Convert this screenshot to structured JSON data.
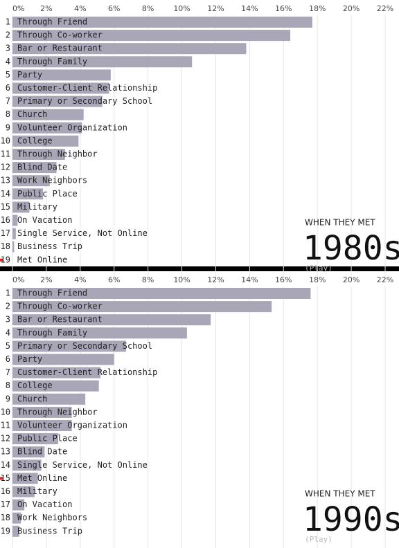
{
  "chart_data": [
    {
      "type": "bar",
      "orientation": "horizontal",
      "annotations": [
        "WHEN THEY MET",
        "1980s",
        "(Play)"
      ],
      "ranks": [
        1,
        2,
        3,
        4,
        5,
        6,
        7,
        8,
        9,
        10,
        11,
        12,
        13,
        14,
        15,
        16,
        17,
        18,
        19
      ],
      "categories": [
        "Through Friend",
        "Through Co-worker",
        "Bar or Restaurant",
        "Through Family",
        "Party",
        "Customer-Client Relationship",
        "Primary or Secondary School",
        "Church",
        "Volunteer Organization",
        "College",
        "Through Neighbor",
        "Blind Date",
        "Work Neighbors",
        "Public Place",
        "Military",
        "On Vacation",
        "Single Service, Not Online",
        "Business Trip",
        "Met Online"
      ],
      "values": [
        17.7,
        16.4,
        13.8,
        10.6,
        5.8,
        5.7,
        5.3,
        4.2,
        4.1,
        3.9,
        3.1,
        2.6,
        2.2,
        1.8,
        1.0,
        0.3,
        0.2,
        0.1,
        0
      ],
      "color": "#a9a6b8",
      "highlight": "Met Online",
      "highlight_color": "#d62728",
      "xlim": [
        0,
        22
      ],
      "xticks": [
        {
          "value": 0,
          "label": "0%"
        },
        {
          "value": 2,
          "label": "2%"
        },
        {
          "value": 4,
          "label": "4%"
        },
        {
          "value": 6,
          "label": "6%"
        },
        {
          "value": 8,
          "label": "8%"
        },
        {
          "value": 10,
          "label": "10%"
        },
        {
          "value": 12,
          "label": "12%"
        },
        {
          "value": 14,
          "label": "14%"
        },
        {
          "value": 16,
          "label": "16%"
        },
        {
          "value": 18,
          "label": "18%"
        },
        {
          "value": 20,
          "label": "20%"
        },
        {
          "value": 22,
          "label": "22%"
        }
      ],
      "grid": true
    },
    {
      "type": "bar",
      "orientation": "horizontal",
      "annotations": [
        "WHEN THEY MET",
        "1990s",
        "(Play)"
      ],
      "ranks": [
        1,
        2,
        3,
        4,
        5,
        6,
        7,
        8,
        9,
        10,
        11,
        12,
        13,
        14,
        15,
        16,
        17,
        18,
        19
      ],
      "categories": [
        "Through Friend",
        "Through Co-worker",
        "Bar or Restaurant",
        "Through Family",
        "Primary or Secondary School",
        "Party",
        "Customer-Client Relationship",
        "College",
        "Church",
        "Through Neighbor",
        "Volunteer Organization",
        "Public Place",
        "Blind Date",
        "Single Service, Not Online",
        "Met Online",
        "Military",
        "On Vacation",
        "Work Neighbors",
        "Business Trip"
      ],
      "values": [
        17.6,
        15.3,
        11.7,
        10.3,
        6.7,
        6.0,
        5.2,
        5.1,
        4.3,
        3.5,
        3.5,
        2.7,
        1.9,
        1.7,
        1.5,
        1.3,
        0.7,
        0.5,
        0.4
      ],
      "color": "#a9a6b8",
      "highlight": "Met Online",
      "highlight_color": "#d62728",
      "xlim": [
        0,
        22
      ],
      "xticks": [
        {
          "value": 0,
          "label": "0%"
        },
        {
          "value": 2,
          "label": "2%"
        },
        {
          "value": 4,
          "label": "4%"
        },
        {
          "value": 6,
          "label": "6%"
        },
        {
          "value": 8,
          "label": "8%"
        },
        {
          "value": 10,
          "label": "10%"
        },
        {
          "value": 12,
          "label": "12%"
        },
        {
          "value": 14,
          "label": "14%"
        },
        {
          "value": 16,
          "label": "16%"
        },
        {
          "value": 18,
          "label": "18%"
        },
        {
          "value": 20,
          "label": "20%"
        },
        {
          "value": 22,
          "label": "22%"
        }
      ],
      "grid": true
    }
  ]
}
